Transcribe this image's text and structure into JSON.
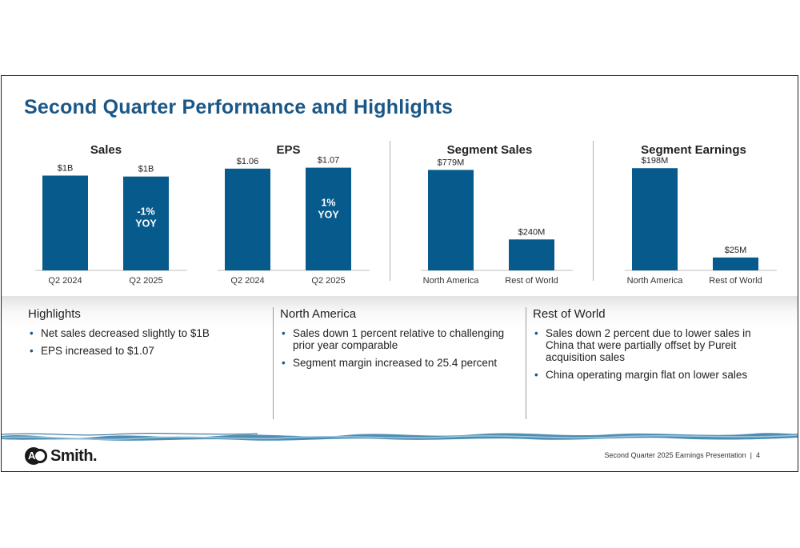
{
  "slide": {
    "title": "Second Quarter Performance and Highlights",
    "footer_text": "Second Quarter 2025 Earnings Presentation",
    "page_number": "4",
    "logo_text": "AO Smith",
    "colors": {
      "accent": "#1a5787",
      "bar": "#075a8c",
      "water": "#3a86b0"
    }
  },
  "chart_data": [
    {
      "type": "bar",
      "title": "Sales",
      "categories": [
        "Q2 2024",
        "Q2 2025"
      ],
      "values": [
        1.0,
        0.99
      ],
      "data_labels": [
        "$1B",
        "$1B"
      ],
      "annotation": {
        "category": "Q2 2025",
        "lines": [
          "-1%",
          "YOY"
        ]
      },
      "ylim": [
        0,
        1.08
      ],
      "grid": false,
      "legend": "none"
    },
    {
      "type": "bar",
      "title": "EPS",
      "categories": [
        "Q2 2024",
        "Q2 2025"
      ],
      "values": [
        1.06,
        1.07
      ],
      "data_labels": [
        "$1.06",
        "$1.07"
      ],
      "annotation": {
        "category": "Q2 2025",
        "lines": [
          "1%",
          "YOY"
        ]
      },
      "ylim": [
        0,
        1.1
      ],
      "grid": false,
      "legend": "none"
    },
    {
      "type": "bar",
      "title": "Segment Sales",
      "categories": [
        "North America",
        "Rest of World"
      ],
      "values": [
        779,
        240
      ],
      "data_labels": [
        "$779M",
        "$240M"
      ],
      "ylim": [
        0,
        800
      ],
      "grid": false,
      "legend": "none"
    },
    {
      "type": "bar",
      "title": "Segment Earnings",
      "categories": [
        "North America",
        "Rest of World"
      ],
      "values": [
        198,
        25
      ],
      "data_labels": [
        "$198M",
        "$25M"
      ],
      "ylim": [
        0,
        203
      ],
      "grid": false,
      "legend": "none"
    }
  ],
  "highlights": {
    "columns": [
      {
        "heading": "Highlights",
        "bullets": [
          "Net sales decreased slightly to $1B",
          "EPS increased to $1.07"
        ]
      },
      {
        "heading": "North America",
        "bullets": [
          "Sales down 1 percent relative to challenging prior year comparable",
          "Segment margin increased to 25.4 percent"
        ]
      },
      {
        "heading": "Rest of World",
        "bullets": [
          "Sales down 2 percent due to lower sales in China that were partially offset by Pureit acquisition sales",
          "China operating margin flat on lower sales"
        ]
      }
    ]
  }
}
